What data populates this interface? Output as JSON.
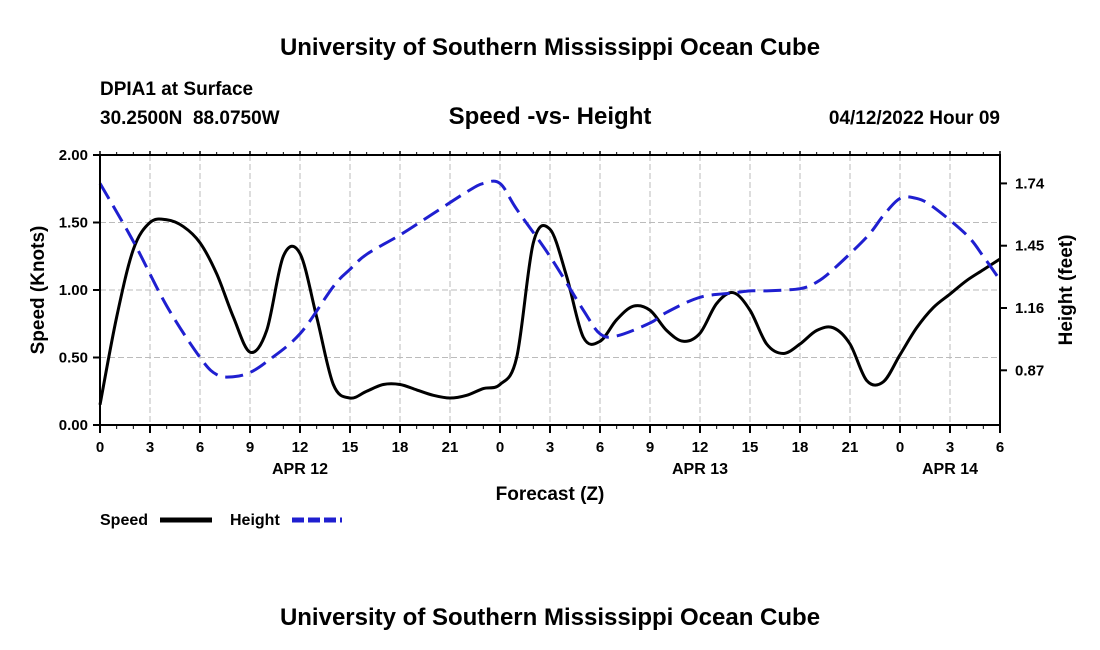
{
  "header": {
    "title": "University of Southern Mississippi Ocean Cube",
    "station": "DPIA1 at Surface",
    "coords": "30.2500N  88.0750W",
    "chart_title": "Speed -vs- Height",
    "datetime": "04/12/2022 Hour 09"
  },
  "footer": {
    "title": "University of Southern Mississippi Ocean Cube"
  },
  "legend": {
    "speed_label": "Speed",
    "height_label": "Height"
  },
  "colors": {
    "speed": "#000000",
    "height": "#1f1fd0",
    "grid": "#bbbbbb"
  },
  "chart_data": {
    "type": "line",
    "title": "Speed -vs- Height",
    "xlabel": "Forecast (Z)",
    "ylabel": "Speed (Knots)",
    "y2label": "Height (feet)",
    "x_range": [
      0,
      54
    ],
    "x_ticks": [
      0,
      3,
      6,
      9,
      12,
      15,
      18,
      21,
      24,
      27,
      30,
      33,
      36,
      39,
      42,
      45,
      48,
      51,
      54
    ],
    "x_tick_labels": [
      "0",
      "3",
      "6",
      "9",
      "12",
      "15",
      "18",
      "21",
      "0",
      "3",
      "6",
      "9",
      "12",
      "15",
      "18",
      "21",
      "0",
      "3",
      "6"
    ],
    "date_labels": [
      {
        "x": 12,
        "label": "APR 12"
      },
      {
        "x": 36,
        "label": "APR 13"
      },
      {
        "x": 51,
        "label": "APR 14"
      }
    ],
    "ylim": [
      0,
      2.0
    ],
    "y_ticks": [
      0.0,
      0.5,
      1.0,
      1.5,
      2.0
    ],
    "y_tick_labels": [
      "0.00",
      "0.50",
      "1.00",
      "1.50",
      "2.00"
    ],
    "y2lim": [
      0.6154,
      1.8722
    ],
    "y2_ticks": [
      0.87,
      1.16,
      1.45,
      1.74
    ],
    "y2_tick_labels": [
      "0.87",
      "1.16",
      "1.45",
      "1.74"
    ],
    "grid": true,
    "legend_position": "bottom-left",
    "series": [
      {
        "name": "Speed",
        "axis": "left",
        "style": "solid",
        "x": [
          0,
          1,
          2,
          3,
          4,
          5,
          6,
          7,
          8,
          9,
          10,
          11,
          12,
          13,
          14,
          15,
          16,
          17,
          18,
          19,
          20,
          21,
          22,
          23,
          24,
          25,
          26,
          27,
          28,
          29,
          30,
          31,
          32,
          33,
          34,
          35,
          36,
          37,
          38,
          39,
          40,
          41,
          42,
          43,
          44,
          45,
          46,
          47,
          48,
          49,
          50,
          51,
          52,
          53,
          54
        ],
        "values": [
          0.15,
          0.8,
          1.3,
          1.5,
          1.52,
          1.47,
          1.35,
          1.12,
          0.8,
          0.54,
          0.7,
          1.25,
          1.27,
          0.8,
          0.3,
          0.2,
          0.25,
          0.3,
          0.3,
          0.26,
          0.22,
          0.2,
          0.22,
          0.27,
          0.3,
          0.5,
          1.35,
          1.45,
          1.1,
          0.65,
          0.62,
          0.78,
          0.88,
          0.85,
          0.7,
          0.62,
          0.68,
          0.9,
          0.98,
          0.85,
          0.6,
          0.53,
          0.6,
          0.7,
          0.72,
          0.6,
          0.33,
          0.32,
          0.52,
          0.72,
          0.87,
          0.97,
          1.07,
          1.15,
          1.23
        ]
      },
      {
        "name": "Height",
        "axis": "right",
        "style": "dashed",
        "x": [
          0,
          2,
          4,
          6,
          7,
          8,
          9,
          10,
          12,
          14,
          15,
          16,
          18,
          20,
          22,
          23,
          24,
          25,
          27,
          29,
          30,
          31,
          33,
          34,
          36,
          38,
          39,
          40,
          42,
          43,
          44,
          46,
          47,
          48,
          49,
          50,
          52,
          53,
          54
        ],
        "values": [
          1.74,
          1.47,
          1.17,
          0.93,
          0.85,
          0.84,
          0.86,
          0.91,
          1.04,
          1.26,
          1.34,
          1.41,
          1.5,
          1.6,
          1.7,
          1.74,
          1.74,
          1.62,
          1.4,
          1.15,
          1.04,
          1.03,
          1.09,
          1.14,
          1.21,
          1.23,
          1.24,
          1.24,
          1.25,
          1.28,
          1.34,
          1.49,
          1.59,
          1.67,
          1.67,
          1.63,
          1.5,
          1.4,
          1.29
        ]
      }
    ]
  }
}
